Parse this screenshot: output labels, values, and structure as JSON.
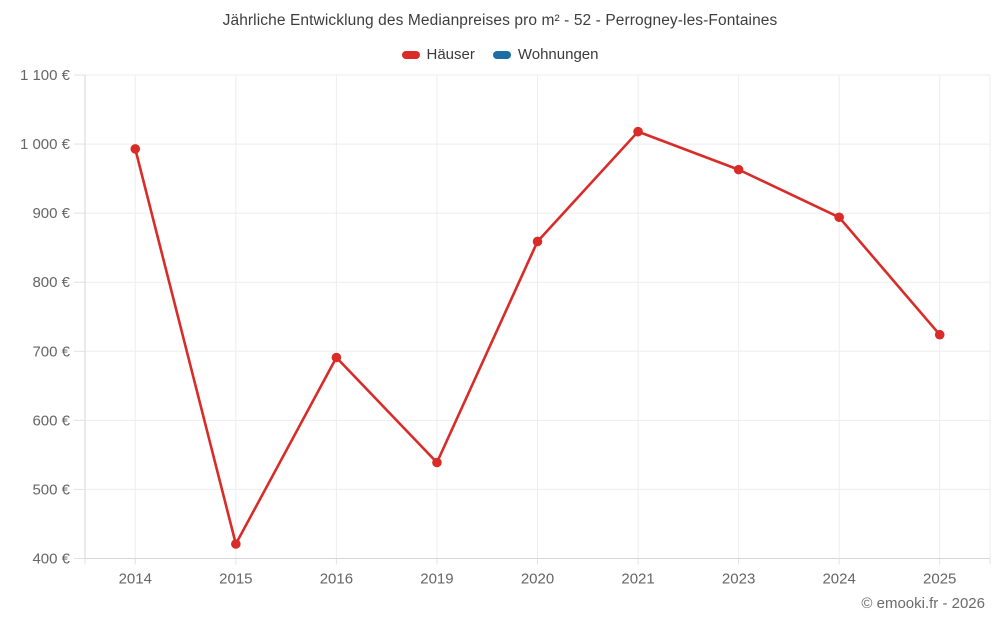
{
  "title": "Jährliche Entwicklung des Medianpreises pro m² - 52 - Perrogney-les-Fontaines",
  "legend": {
    "items": [
      {
        "label": "Häuser",
        "color": "#d92b27"
      },
      {
        "label": "Wohnungen",
        "color": "#1a6da5"
      }
    ]
  },
  "footer": {
    "copyright": "© emooki.fr - 2026"
  },
  "colors": {
    "series_red": "#d92b27",
    "series_blue": "#1a6da5",
    "grid": "#ededed",
    "axis": "#d6d6d6",
    "tick": "#e2e2e2",
    "tick_text": "#666666",
    "title_text": "#3e3e3e"
  },
  "chart_data": {
    "type": "line",
    "title": "Jährliche Entwicklung des Medianpreises pro m² - 52 - Perrogney-les-Fontaines",
    "categories": [
      "2014",
      "2015",
      "2016",
      "2019",
      "2020",
      "2021",
      "2023",
      "2024",
      "2025"
    ],
    "series": [
      {
        "name": "Häuser",
        "color": "#d92b27",
        "values": [
          993,
          421,
          691,
          539,
          859,
          1018,
          963,
          894,
          724
        ]
      },
      {
        "name": "Wohnungen",
        "color": "#1a6da5",
        "values": []
      }
    ],
    "xlabel": "",
    "ylabel": "",
    "ylim": [
      400,
      1100
    ],
    "y_tick_step": 100,
    "y_tick_labels": [
      "400 €",
      "500 €",
      "600 €",
      "700 €",
      "800 €",
      "900 €",
      "1 000 €",
      "1 100 €"
    ],
    "grid": true,
    "legend_position": "top",
    "marker": "circle"
  }
}
